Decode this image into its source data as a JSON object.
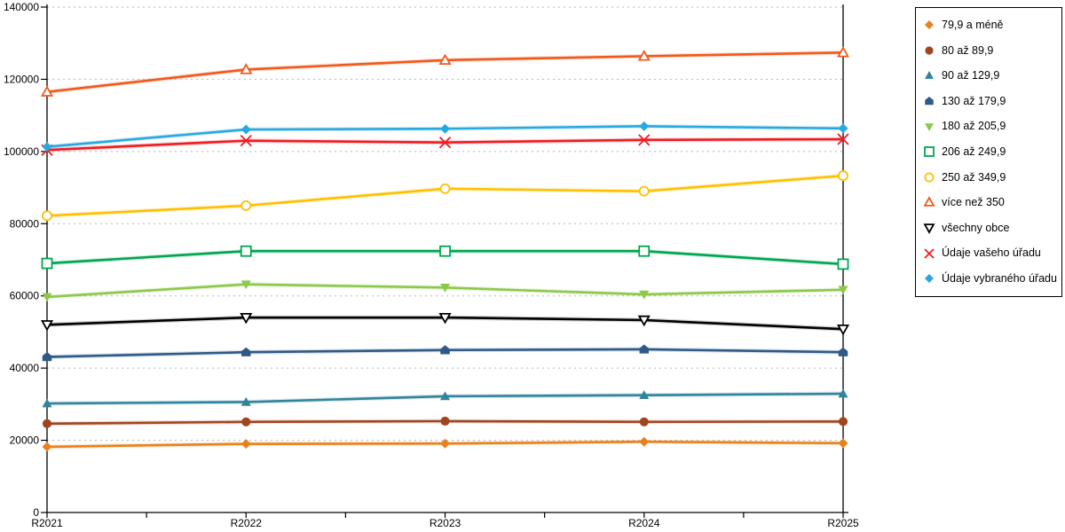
{
  "chart_data": {
    "type": "line",
    "title": "",
    "xlabel": "",
    "ylabel": "",
    "x_categories": [
      "R2021",
      "R2022",
      "R2023",
      "R2024",
      "R2025"
    ],
    "ylim": [
      0,
      140000
    ],
    "y_tick_interval": 20000,
    "y_ticks": [
      0,
      20000,
      40000,
      60000,
      80000,
      100000,
      120000,
      140000
    ],
    "grid": "horizontal dashed at every 20000",
    "x_minor_ticks": "midpoints between year labels",
    "legend_position": "right, boxed",
    "series": [
      {
        "name": "79,9 a méně",
        "marker": "diamond",
        "color": "#E8821E",
        "values": [
          18200,
          19000,
          19100,
          19600,
          19200
        ]
      },
      {
        "name": "80 až 89,9",
        "marker": "circle",
        "color": "#A0461F",
        "values": [
          24600,
          25100,
          25300,
          25100,
          25200
        ]
      },
      {
        "name": "90 až 129,9",
        "marker": "triangle-up",
        "color": "#31849B",
        "values": [
          30200,
          30600,
          32200,
          32500,
          32900
        ]
      },
      {
        "name": "130 až 179,9",
        "marker": "pentagon",
        "color": "#2E5A87",
        "values": [
          43100,
          44400,
          45000,
          45200,
          44400
        ]
      },
      {
        "name": "180 až 205,9",
        "marker": "triangle-down",
        "color": "#8BC94A",
        "values": [
          59700,
          63200,
          62300,
          60400,
          61700
        ]
      },
      {
        "name": "206 až 249,9",
        "marker": "square-open",
        "color": "#00A550",
        "values": [
          69000,
          72400,
          72400,
          72400,
          68800
        ]
      },
      {
        "name": "250 až 349,9",
        "marker": "circle-open",
        "color": "#FFC000",
        "values": [
          82200,
          85000,
          89700,
          89000,
          93300
        ]
      },
      {
        "name": "více než 350",
        "marker": "triangle-up-open",
        "color": "#F1591C",
        "values": [
          116500,
          122700,
          125300,
          126400,
          127400
        ]
      },
      {
        "name": "všechny obce",
        "marker": "triangle-down-open",
        "color": "#000000",
        "values": [
          52000,
          54000,
          54000,
          53300,
          50800
        ]
      },
      {
        "name": "Údaje vašeho úřadu",
        "marker": "x-cross",
        "color": "#EE1D23",
        "values": [
          100400,
          103000,
          102500,
          103200,
          103400
        ]
      },
      {
        "name": "Údaje vybraného úřadu",
        "marker": "diamond",
        "color": "#29A8E0",
        "values": [
          101300,
          106100,
          106300,
          107000,
          106400
        ]
      }
    ]
  },
  "colors": {
    "background": "#ffffff",
    "axis": "#000000",
    "gridline": "#b5b5b5",
    "legend_border": "#000000",
    "tick_label": "#000000"
  }
}
